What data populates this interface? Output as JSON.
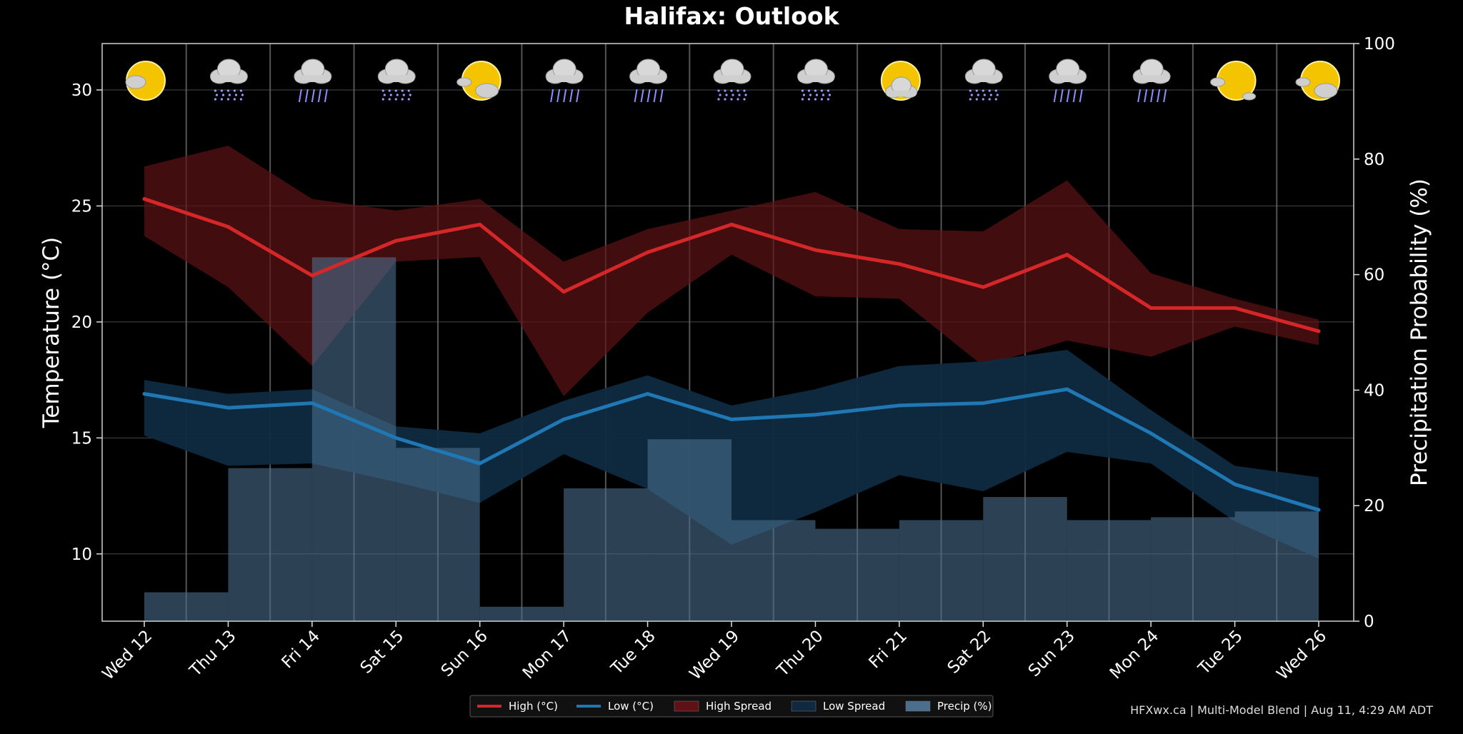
{
  "chart_data": {
    "type": "line",
    "title": "Halifax: Outlook",
    "ylabel": "Temperature (°C)",
    "y2label": "Precipitation Probability (%)",
    "ylim": [
      7.1,
      32
    ],
    "y2lim": [
      0,
      100
    ],
    "yticks": [
      10,
      15,
      20,
      25,
      30
    ],
    "y2ticks": [
      0,
      20,
      40,
      60,
      80,
      100
    ],
    "grid": true,
    "legend_position": "bottom-center",
    "categories": [
      "Wed 12",
      "Thu 13",
      "Fri 14",
      "Sat 15",
      "Sun 16",
      "Mon 17",
      "Tue 18",
      "Wed 19",
      "Thu 20",
      "Fri 21",
      "Sat 22",
      "Sun 23",
      "Mon 24",
      "Tue 25",
      "Wed 26"
    ],
    "series": [
      {
        "name": "High (°C)",
        "color": "#d62728",
        "values": [
          25.3,
          24.1,
          22.0,
          23.5,
          24.2,
          21.3,
          23.0,
          24.2,
          23.1,
          22.5,
          21.5,
          22.9,
          20.6,
          20.6,
          19.6
        ]
      },
      {
        "name": "Low (°C)",
        "color": "#1f77b4",
        "values": [
          16.9,
          16.3,
          16.5,
          15.0,
          13.9,
          15.8,
          16.9,
          15.8,
          16.0,
          16.4,
          16.5,
          17.1,
          15.2,
          13.0,
          11.9
        ]
      },
      {
        "name": "High Spread",
        "color": "#5e1216",
        "upper": [
          26.7,
          27.6,
          25.3,
          24.8,
          25.3,
          22.6,
          24.0,
          24.8,
          25.6,
          24.0,
          23.9,
          26.1,
          22.1,
          21.0,
          20.1
        ],
        "lower": [
          23.7,
          21.5,
          18.1,
          22.6,
          22.8,
          16.8,
          20.4,
          22.9,
          21.1,
          21.0,
          18.1,
          19.2,
          18.5,
          19.8,
          19.0
        ]
      },
      {
        "name": "Low Spread",
        "color": "#0f2a40",
        "upper": [
          17.5,
          16.9,
          17.1,
          15.5,
          15.2,
          16.6,
          17.7,
          16.4,
          17.1,
          18.1,
          18.3,
          18.8,
          16.2,
          13.8,
          13.3
        ],
        "lower": [
          15.1,
          13.8,
          13.9,
          13.1,
          12.2,
          14.3,
          12.8,
          10.4,
          11.8,
          13.4,
          12.7,
          14.4,
          13.9,
          11.4,
          9.8
        ]
      },
      {
        "name": "Precip (%)",
        "color": "#4a6e8c",
        "values": [
          5,
          26.5,
          63,
          30,
          2.5,
          23,
          31.5,
          17.5,
          16,
          17.5,
          21.5,
          17.5,
          18,
          19,
          19
        ]
      }
    ],
    "weather_icons": [
      "sun-cloud-icon",
      "snow-cloud-icon",
      "rain-cloud-icon",
      "snow-cloud-icon",
      "sun-cloud-icon",
      "rain-cloud-icon",
      "rain-cloud-icon",
      "snow-cloud-icon",
      "snow-cloud-icon",
      "sun-cloud-icon",
      "snow-cloud-icon",
      "rain-cloud-icon",
      "rain-cloud-icon",
      "sun-cloud-icon",
      "sun-cloud-icon"
    ],
    "legend": [
      "High (°C)",
      "Low (°C)",
      "High Spread",
      "Low Spread",
      "Precip (%)"
    ]
  },
  "credit": "HFXwx.ca | Multi-Model Blend | Aug 11, 4:29 AM ADT",
  "colors": {
    "background": "#000000",
    "high": "#d62728",
    "low": "#1f77b4",
    "high_spread": "#5e1216",
    "low_spread": "#0f2a40",
    "precip": "#4a6e8c",
    "grid": "#666666"
  }
}
